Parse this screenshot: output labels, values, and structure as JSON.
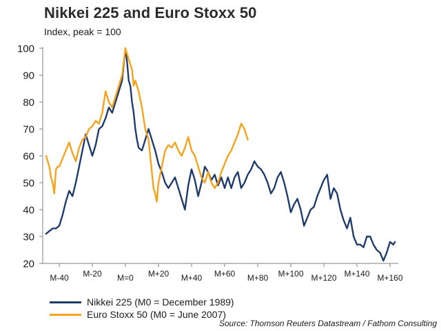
{
  "title": "Nikkei 225 and Euro Stoxx 50",
  "subtitle": "Index, peak = 100",
  "source": "Source: Thomson Reuters Datastream / Fathom Consulting",
  "colors": {
    "nikkei": "#1f3b6e",
    "eurostoxx": "#f7a21b",
    "axis": "#7f7f7f"
  },
  "chart_data": {
    "type": "line",
    "xlim": [
      -50,
      165
    ],
    "ylim": [
      20,
      100
    ],
    "yticks": [
      20,
      30,
      40,
      50,
      60,
      70,
      80,
      90,
      100
    ],
    "xticks": [
      {
        "x": -40,
        "label": "M-40"
      },
      {
        "x": -20,
        "label": "M-20"
      },
      {
        "x": 0,
        "label": "M=0"
      },
      {
        "x": 20,
        "label": "M+20"
      },
      {
        "x": 40,
        "label": "M+40"
      },
      {
        "x": 60,
        "label": "M+60"
      },
      {
        "x": 80,
        "label": "M+80"
      },
      {
        "x": 100,
        "label": "M+100"
      },
      {
        "x": 120,
        "label": "M+120"
      },
      {
        "x": 140,
        "label": "M+140"
      },
      {
        "x": 160,
        "label": "M+160"
      }
    ],
    "legend_position": "bottom-left",
    "series": [
      {
        "name": "Nikkei 225 (M0 = December 1989)",
        "color": "#1f3b6e",
        "points": [
          [
            -48,
            31
          ],
          [
            -46,
            32
          ],
          [
            -44,
            33
          ],
          [
            -42,
            33
          ],
          [
            -40,
            34
          ],
          [
            -38,
            38
          ],
          [
            -36,
            43
          ],
          [
            -34,
            47
          ],
          [
            -32,
            45
          ],
          [
            -30,
            50
          ],
          [
            -28,
            56
          ],
          [
            -26,
            62
          ],
          [
            -24,
            68
          ],
          [
            -22,
            64
          ],
          [
            -20,
            60
          ],
          [
            -18,
            64
          ],
          [
            -16,
            70
          ],
          [
            -14,
            71
          ],
          [
            -12,
            74
          ],
          [
            -10,
            78
          ],
          [
            -8,
            76
          ],
          [
            -6,
            80
          ],
          [
            -4,
            84
          ],
          [
            -2,
            88
          ],
          [
            0,
            100
          ],
          [
            1,
            95
          ],
          [
            2,
            88
          ],
          [
            3,
            86
          ],
          [
            4,
            80
          ],
          [
            5,
            76
          ],
          [
            6,
            70
          ],
          [
            7,
            66
          ],
          [
            8,
            63
          ],
          [
            10,
            62
          ],
          [
            12,
            66
          ],
          [
            14,
            70
          ],
          [
            16,
            66
          ],
          [
            18,
            62
          ],
          [
            20,
            57
          ],
          [
            22,
            54
          ],
          [
            24,
            50
          ],
          [
            26,
            48
          ],
          [
            28,
            50
          ],
          [
            30,
            52
          ],
          [
            32,
            48
          ],
          [
            34,
            44
          ],
          [
            36,
            40
          ],
          [
            38,
            49
          ],
          [
            40,
            55
          ],
          [
            42,
            51
          ],
          [
            44,
            45
          ],
          [
            46,
            50
          ],
          [
            48,
            56
          ],
          [
            50,
            54
          ],
          [
            52,
            51
          ],
          [
            54,
            53
          ],
          [
            56,
            49
          ],
          [
            58,
            52
          ],
          [
            60,
            48
          ],
          [
            62,
            52
          ],
          [
            64,
            48
          ],
          [
            66,
            52
          ],
          [
            68,
            54
          ],
          [
            70,
            48
          ],
          [
            72,
            50
          ],
          [
            74,
            53
          ],
          [
            76,
            55
          ],
          [
            78,
            58
          ],
          [
            80,
            56
          ],
          [
            82,
            55
          ],
          [
            84,
            53
          ],
          [
            86,
            50
          ],
          [
            88,
            46
          ],
          [
            90,
            48
          ],
          [
            92,
            52
          ],
          [
            94,
            54
          ],
          [
            96,
            50
          ],
          [
            98,
            45
          ],
          [
            100,
            39
          ],
          [
            102,
            42
          ],
          [
            104,
            44
          ],
          [
            106,
            40
          ],
          [
            108,
            34
          ],
          [
            110,
            37
          ],
          [
            112,
            40
          ],
          [
            114,
            41
          ],
          [
            116,
            45
          ],
          [
            118,
            48
          ],
          [
            120,
            51
          ],
          [
            122,
            53
          ],
          [
            124,
            44
          ],
          [
            126,
            48
          ],
          [
            128,
            46
          ],
          [
            130,
            40
          ],
          [
            132,
            36
          ],
          [
            134,
            33
          ],
          [
            136,
            37
          ],
          [
            138,
            30
          ],
          [
            140,
            27
          ],
          [
            142,
            27
          ],
          [
            144,
            26
          ],
          [
            146,
            30
          ],
          [
            148,
            30
          ],
          [
            150,
            27
          ],
          [
            152,
            25
          ],
          [
            154,
            24
          ],
          [
            156,
            21
          ],
          [
            158,
            24
          ],
          [
            160,
            28
          ],
          [
            162,
            27
          ],
          [
            163,
            28
          ]
        ]
      },
      {
        "name": "Euro Stoxx 50 (M0 = June 2007)",
        "color": "#f7a21b",
        "points": [
          [
            -48,
            60
          ],
          [
            -47,
            58
          ],
          [
            -46,
            56
          ],
          [
            -45,
            52
          ],
          [
            -44,
            50
          ],
          [
            -43,
            46
          ],
          [
            -42,
            55
          ],
          [
            -41,
            56
          ],
          [
            -40,
            56
          ],
          [
            -38,
            59
          ],
          [
            -36,
            62
          ],
          [
            -34,
            65
          ],
          [
            -32,
            61
          ],
          [
            -30,
            58
          ],
          [
            -28,
            63
          ],
          [
            -26,
            66
          ],
          [
            -24,
            67
          ],
          [
            -22,
            70
          ],
          [
            -20,
            71
          ],
          [
            -18,
            73
          ],
          [
            -16,
            72
          ],
          [
            -14,
            76
          ],
          [
            -12,
            84
          ],
          [
            -10,
            80
          ],
          [
            -8,
            78
          ],
          [
            -6,
            82
          ],
          [
            -4,
            86
          ],
          [
            -2,
            90
          ],
          [
            0,
            100
          ],
          [
            1,
            98
          ],
          [
            2,
            96
          ],
          [
            4,
            92
          ],
          [
            5,
            86
          ],
          [
            6,
            88
          ],
          [
            8,
            84
          ],
          [
            10,
            78
          ],
          [
            12,
            70
          ],
          [
            14,
            66
          ],
          [
            15,
            60
          ],
          [
            16,
            54
          ],
          [
            17,
            48
          ],
          [
            18,
            46
          ],
          [
            19,
            43
          ],
          [
            20,
            50
          ],
          [
            22,
            56
          ],
          [
            24,
            62
          ],
          [
            26,
            64
          ],
          [
            28,
            63
          ],
          [
            30,
            65
          ],
          [
            32,
            62
          ],
          [
            34,
            60
          ],
          [
            36,
            63
          ],
          [
            38,
            67
          ],
          [
            40,
            62
          ],
          [
            42,
            60
          ],
          [
            44,
            56
          ],
          [
            46,
            52
          ],
          [
            48,
            50
          ],
          [
            50,
            54
          ],
          [
            52,
            50
          ],
          [
            54,
            48
          ],
          [
            56,
            50
          ],
          [
            58,
            54
          ],
          [
            60,
            57
          ],
          [
            62,
            60
          ],
          [
            64,
            62
          ],
          [
            66,
            65
          ],
          [
            68,
            68
          ],
          [
            70,
            72
          ],
          [
            72,
            70
          ],
          [
            74,
            66
          ]
        ]
      }
    ]
  }
}
